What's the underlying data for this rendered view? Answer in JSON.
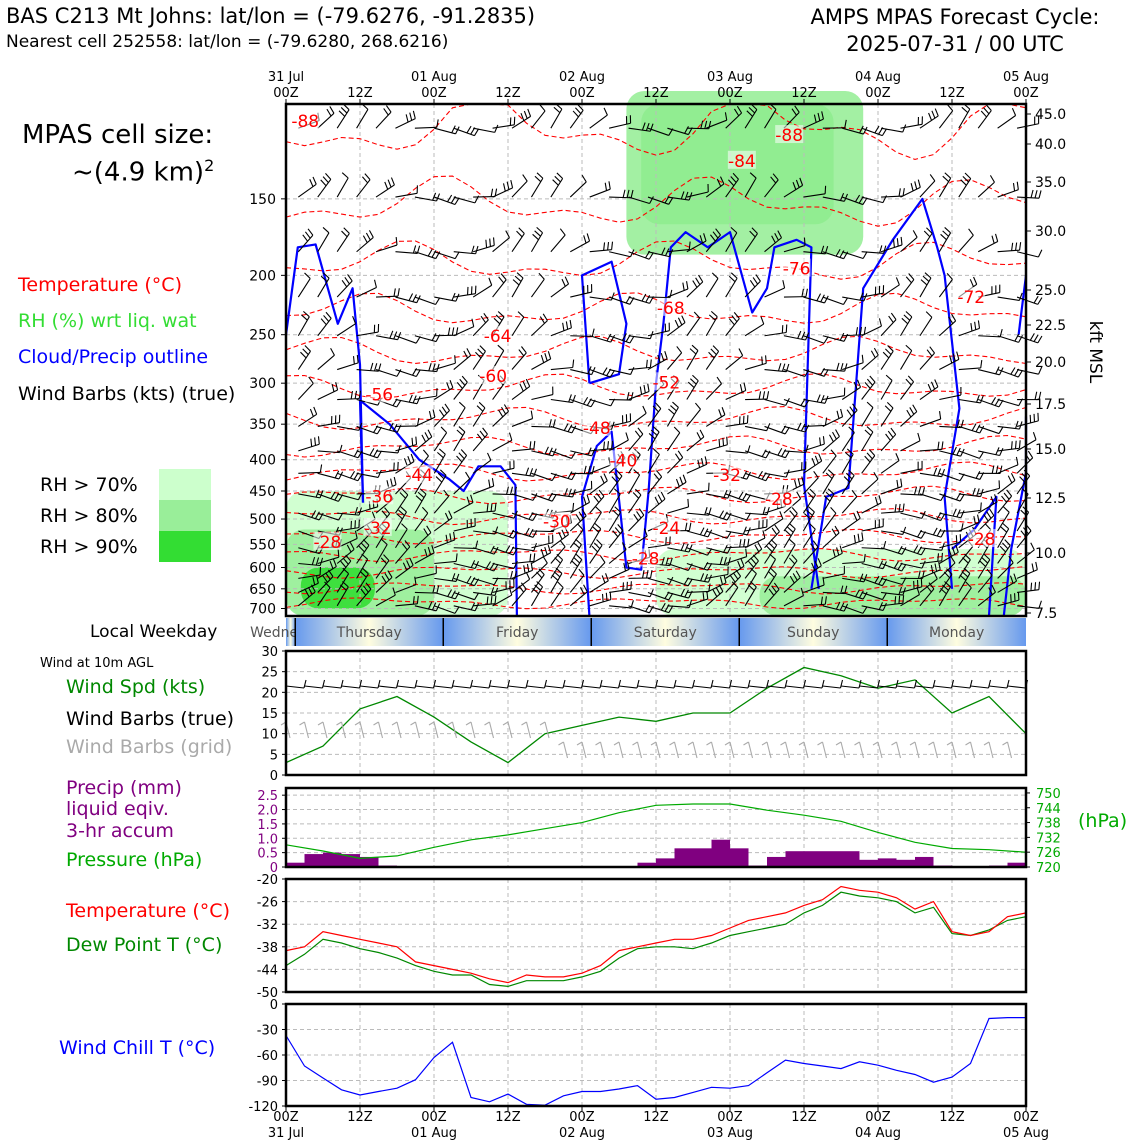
{
  "header": {
    "title_left": "BAS C213 Mt Johns: lat/lon = (-79.6276, -91.2835)",
    "subtitle_left": "Nearest cell 252558: lat/lon = (-79.6280, 268.6216)",
    "title_right_1": "AMPS MPAS Forecast Cycle:",
    "title_right_2": "2025-07-31 / 00 UTC",
    "cell_size_1": "MPAS cell size:",
    "cell_size_2": "~(4.9 km)",
    "cell_size_sup": "2"
  },
  "legend": {
    "temperature": "Temperature (°C)",
    "rh": "RH (%) wrt liq. wat",
    "cloud": "Cloud/Precip outline",
    "wind": "Wind Barbs (kts) (true)",
    "rh70": "RH > 70%",
    "rh80": "RH > 80%",
    "rh90": "RH > 90%",
    "colors": {
      "rh70": "#ccffcc",
      "rh80": "#99ee99",
      "rh90": "#33dd33",
      "temp": "#ff0000",
      "cloud": "#0000ff"
    }
  },
  "time_axis": {
    "top_dates": [
      "31 Jul",
      "01 Aug",
      "02 Aug",
      "03 Aug",
      "04 Aug",
      "05 Aug"
    ],
    "ticks": [
      "00Z",
      "12Z",
      "00Z",
      "12Z",
      "00Z",
      "12Z",
      "00Z",
      "12Z",
      "00Z",
      "12Z",
      "00Z"
    ],
    "bottom_dates": [
      "31 Jul",
      "01 Aug",
      "02 Aug",
      "03 Aug",
      "04 Aug",
      "05 Aug"
    ]
  },
  "weekday": {
    "label": "Local Weekday",
    "days": [
      "Wednesday",
      "Thursday",
      "Friday",
      "Saturday",
      "Sunday",
      "Monday"
    ]
  },
  "chart_data": [
    {
      "type": "heatmap",
      "name": "time-height cross section",
      "ylabel_right": "kft MSL",
      "pressure_ticks": [
        150,
        200,
        250,
        300,
        350,
        400,
        450,
        500,
        550,
        600,
        650,
        700
      ],
      "kft_ticks": [
        "45.0",
        "40.0",
        "35.0",
        "30.0",
        "25.0",
        "22.5",
        "20.0",
        "17.5",
        "15.0",
        "12.5",
        "10.0",
        "7.5"
      ],
      "temperature_labels": [
        {
          "label": "-88",
          "t": 0.13,
          "p": 112
        },
        {
          "label": "-84",
          "t": 3.08,
          "p": 130
        },
        {
          "label": "-88",
          "t": 3.4,
          "p": 118
        },
        {
          "label": "-76",
          "t": 3.45,
          "p": 195
        },
        {
          "label": "-72",
          "t": 4.63,
          "p": 217
        },
        {
          "label": "-68",
          "t": 2.6,
          "p": 226
        },
        {
          "label": "-64",
          "t": 1.43,
          "p": 251
        },
        {
          "label": "-60",
          "t": 1.4,
          "p": 292
        },
        {
          "label": "-52",
          "t": 2.57,
          "p": 299
        },
        {
          "label": "-56",
          "t": 0.63,
          "p": 313
        },
        {
          "label": "-48",
          "t": 2.1,
          "p": 355
        },
        {
          "label": "-40",
          "t": 2.28,
          "p": 401
        },
        {
          "label": "-44",
          "t": 0.9,
          "p": 424
        },
        {
          "label": "-32",
          "t": 2.98,
          "p": 424
        },
        {
          "label": "-36",
          "t": 0.63,
          "p": 459
        },
        {
          "label": "-28",
          "t": 3.33,
          "p": 464
        },
        {
          "label": "-30",
          "t": 1.83,
          "p": 505
        },
        {
          "label": "-24",
          "t": 2.57,
          "p": 517
        },
        {
          "label": "-32",
          "t": 0.62,
          "p": 517
        },
        {
          "label": "-28",
          "t": 0.28,
          "p": 545
        },
        {
          "label": "-28",
          "t": 4.7,
          "p": 539
        },
        {
          "label": "-28",
          "t": 2.43,
          "p": 580
        }
      ],
      "rh_areas": [
        {
          "level": "rh90",
          "t": [
            2.4,
            3.7
          ],
          "p": [
            105,
            165
          ]
        },
        {
          "level": "rh80",
          "t": [
            2.3,
            3.9
          ],
          "p": [
            100,
            185
          ]
        },
        {
          "level": "rh70",
          "t": [
            0.0,
            1.5
          ],
          "p": [
            450,
            720
          ]
        },
        {
          "level": "rh80",
          "t": [
            0.0,
            1.0
          ],
          "p": [
            520,
            720
          ]
        },
        {
          "level": "rh90",
          "t": [
            0.1,
            0.6
          ],
          "p": [
            600,
            700
          ]
        },
        {
          "level": "rh70",
          "t": [
            2.5,
            5.0
          ],
          "p": [
            560,
            720
          ]
        },
        {
          "level": "rh80",
          "t": [
            3.2,
            5.0
          ],
          "p": [
            620,
            720
          ]
        }
      ]
    },
    {
      "type": "line",
      "name": "wind at 10m",
      "title": "Wind at 10m AGL",
      "series_labels": [
        "Wind Spd (kts)",
        "Wind Barbs (true)",
        "Wind Barbs (grid)"
      ],
      "ylim": [
        0,
        30
      ],
      "yticks": [
        0,
        5,
        10,
        15,
        20,
        25,
        30
      ],
      "x_hours": [
        0,
        6,
        12,
        18,
        24,
        30,
        36,
        42,
        48,
        54,
        60,
        66,
        72,
        78,
        84,
        90,
        96,
        102,
        108,
        114,
        120
      ],
      "wind_speed": [
        3,
        7,
        16,
        19,
        14,
        8,
        3,
        10,
        12,
        14,
        13,
        15,
        15,
        21,
        26,
        24,
        21,
        23,
        15,
        19,
        10
      ]
    },
    {
      "type": "bar",
      "name": "precip and pressure",
      "series_labels": [
        "Precip (mm)",
        "liquid eqiv.",
        "3-hr accum",
        "Pressure (hPa)"
      ],
      "precip_yticks": [
        "0",
        "0.5",
        "1.0",
        "1.5",
        "2.0",
        "2.5"
      ],
      "precip_ylim": [
        0,
        2.75
      ],
      "pressure_yticks": [
        "720",
        "726",
        "732",
        "738",
        "744",
        "750"
      ],
      "pressure_ylim": [
        720,
        752
      ],
      "pressure_unit": "(hPa)",
      "precip_x_hours": [
        3,
        6,
        9,
        12,
        15,
        18,
        21,
        60,
        63,
        66,
        69,
        72,
        75,
        78,
        81,
        84,
        87,
        90,
        93,
        96,
        99,
        102,
        105,
        108,
        117,
        120
      ],
      "precip_values": [
        0.15,
        0.45,
        0.5,
        0.45,
        0.35,
        0.05,
        0.02,
        0.15,
        0.3,
        0.65,
        0.65,
        0.95,
        0.65,
        0.05,
        0.35,
        0.55,
        0.55,
        0.55,
        0.55,
        0.25,
        0.3,
        0.25,
        0.35,
        0.05,
        0.05,
        0.15
      ],
      "pressure_x_hours": [
        0,
        6,
        12,
        18,
        24,
        30,
        36,
        42,
        48,
        54,
        60,
        66,
        72,
        78,
        84,
        90,
        96,
        102,
        108,
        114,
        120
      ],
      "pressure_values": [
        729,
        726.5,
        723.5,
        724.5,
        728,
        731,
        733,
        735.5,
        738,
        742,
        745,
        745.5,
        745.5,
        743,
        741,
        738.5,
        734,
        730,
        727.5,
        727,
        726
      ]
    },
    {
      "type": "line",
      "name": "temperature",
      "series_labels": [
        "Temperature (°C)",
        "Dew Point T (°C)"
      ],
      "ylim": [
        -50,
        -20
      ],
      "yticks": [
        -20,
        -26,
        -32,
        -38,
        -44,
        -50
      ],
      "x_hours": [
        0,
        3,
        6,
        9,
        12,
        15,
        18,
        21,
        24,
        27,
        30,
        33,
        36,
        39,
        42,
        45,
        48,
        51,
        54,
        57,
        60,
        63,
        66,
        69,
        72,
        75,
        78,
        81,
        84,
        87,
        90,
        93,
        96,
        99,
        102,
        105,
        108,
        111,
        114,
        117,
        120
      ],
      "temperature": [
        -39,
        -38,
        -34,
        -35,
        -36,
        -37,
        -38,
        -42,
        -43,
        -44,
        -45,
        -46.5,
        -47.5,
        -45.5,
        -46,
        -46,
        -45,
        -43,
        -39,
        -38,
        -37,
        -36,
        -36,
        -35,
        -33,
        -31,
        -30,
        -29,
        -27,
        -25.5,
        -22,
        -23,
        -23.5,
        -25,
        -28,
        -26,
        -34,
        -35,
        -34,
        -30,
        -29
      ],
      "dewpoint": [
        -43,
        -40,
        -36,
        -37,
        -38.5,
        -39.5,
        -41,
        -43,
        -44.5,
        -45.5,
        -45.5,
        -48,
        -48.5,
        -47,
        -47,
        -47,
        -46,
        -44.5,
        -41,
        -38.5,
        -38,
        -38,
        -38.5,
        -37,
        -35,
        -34,
        -33,
        -32,
        -29,
        -27,
        -23.5,
        -24.5,
        -25,
        -26,
        -29,
        -27.5,
        -34.5,
        -35,
        -33.5,
        -31,
        -30
      ]
    },
    {
      "type": "line",
      "name": "wind chill",
      "series_labels": [
        "Wind Chill T (°C)"
      ],
      "ylim": [
        -120,
        0
      ],
      "yticks": [
        0,
        -30,
        -60,
        -90,
        -120
      ],
      "x_hours": [
        0,
        3,
        6,
        9,
        12,
        15,
        18,
        21,
        24,
        27,
        30,
        33,
        36,
        39,
        42,
        45,
        48,
        51,
        54,
        57,
        60,
        63,
        66,
        69,
        72,
        75,
        78,
        81,
        84,
        87,
        90,
        93,
        96,
        99,
        102,
        105,
        108,
        111,
        114,
        117,
        120
      ],
      "wind_chill": [
        -37,
        -73,
        -87,
        -101,
        -107,
        -103,
        -99,
        -89,
        -63,
        -45,
        -110,
        -115,
        -106,
        -118,
        -119,
        -108,
        -103,
        -103,
        -100,
        -96,
        -112,
        -110,
        -104,
        -98,
        -99,
        -96,
        -81,
        -66,
        -70,
        -73,
        -76,
        -68,
        -72,
        -78,
        -83,
        -92,
        -86,
        -70,
        -17,
        -16,
        -16
      ]
    }
  ]
}
